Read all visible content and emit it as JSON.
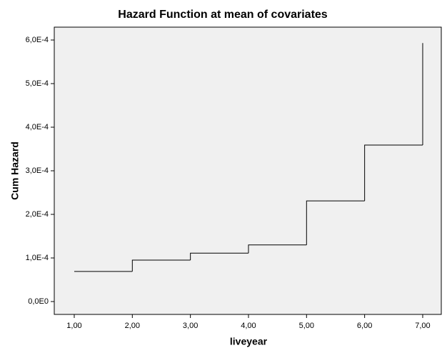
{
  "chart_data": {
    "type": "step",
    "title": "Hazard Function at mean of covariates",
    "x_label": "liveyear",
    "y_label": "Cum Hazard",
    "x": [
      1,
      2,
      3,
      4,
      5,
      6,
      7
    ],
    "values": [
      6.9e-05,
      9.5e-05,
      0.000111,
      0.00013,
      0.000231,
      0.000359,
      0.000593
    ],
    "color": "#000000",
    "xlim": [
      0.656,
      7.32
    ],
    "xticks": [
      {
        "value": 1,
        "label": "1,00"
      },
      {
        "value": 2,
        "label": "2,00"
      },
      {
        "value": 3,
        "label": "3,00"
      },
      {
        "value": 4,
        "label": "4,00"
      },
      {
        "value": 5,
        "label": "5,00"
      },
      {
        "value": 6,
        "label": "6,00"
      },
      {
        "value": 7,
        "label": "7,00"
      }
    ],
    "ylim": [
      -2.95e-05,
      0.00062951
    ],
    "yticks": [
      {
        "value": 0,
        "label": "0,0E0"
      },
      {
        "value": 0.0001,
        "label": "1,0E-4"
      },
      {
        "value": 0.0002,
        "label": "2,0E-4"
      },
      {
        "value": 0.0003,
        "label": "3,0E-4"
      },
      {
        "value": 0.0004,
        "label": "4,0E-4"
      },
      {
        "value": 0.0005,
        "label": "5,0E-4"
      },
      {
        "value": 0.0006,
        "label": "6,0E-4"
      }
    ],
    "background": "#f0f0f0"
  }
}
